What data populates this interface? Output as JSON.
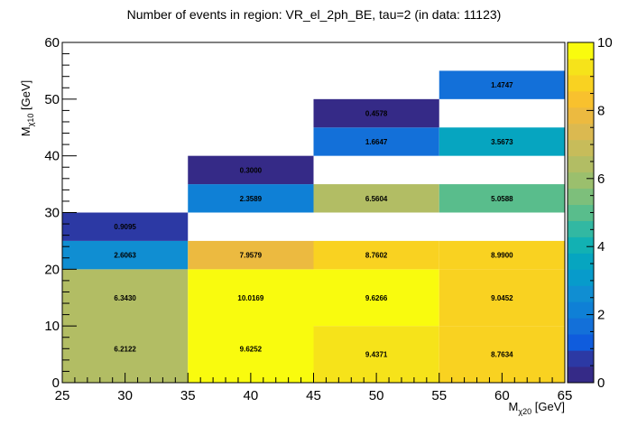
{
  "chart_data": {
    "type": "heatmap",
    "title": "Number of events in region: VR_el_2ph_BE, tau=2 (in data: 11123)",
    "xlabel": {
      "main": "M",
      "sub": "χ20",
      "unit": " [GeV]"
    },
    "ylabel": {
      "main": "M",
      "sub": "χ10",
      "unit": " [GeV]"
    },
    "xlim": [
      25,
      65
    ],
    "ylim": [
      0,
      60
    ],
    "zlim": [
      0,
      10
    ],
    "x_ticks": [
      "25",
      "30",
      "35",
      "40",
      "45",
      "50",
      "55",
      "60",
      "65"
    ],
    "y_ticks": [
      "0",
      "10",
      "20",
      "30",
      "40",
      "50",
      "60"
    ],
    "z_ticks": [
      "0",
      "2",
      "4",
      "6",
      "8",
      "10"
    ],
    "cells": [
      {
        "x": [
          25,
          35
        ],
        "y": [
          0,
          20
        ],
        "value": 6.2122,
        "label": "6.2122",
        "label_y": 6
      },
      {
        "x": [
          25,
          35
        ],
        "y": [
          0,
          20
        ],
        "value": 6.343,
        "label": "6.3430",
        "label_y": 15,
        "label_only": true
      },
      {
        "x": [
          25,
          35
        ],
        "y": [
          20,
          25
        ],
        "value": 2.6063,
        "label": "2.6063"
      },
      {
        "x": [
          25,
          35
        ],
        "y": [
          25,
          30
        ],
        "value": 0.9095,
        "label": "0.9095"
      },
      {
        "x": [
          35,
          45
        ],
        "y": [
          0,
          20
        ],
        "value": 9.6252,
        "label": "9.6252",
        "label_y": 6
      },
      {
        "x": [
          35,
          45
        ],
        "y": [
          0,
          20
        ],
        "value": 10.0169,
        "label": "10.0169",
        "label_y": 15,
        "label_only": true
      },
      {
        "x": [
          35,
          45
        ],
        "y": [
          20,
          25
        ],
        "value": 7.9579,
        "label": "7.9579"
      },
      {
        "x": [
          35,
          45
        ],
        "y": [
          30,
          35
        ],
        "value": 2.3589,
        "label": "2.3589"
      },
      {
        "x": [
          35,
          45
        ],
        "y": [
          35,
          40
        ],
        "value": 0.3,
        "label": "0.3000"
      },
      {
        "x": [
          45,
          55
        ],
        "y": [
          0,
          10
        ],
        "value": 9.4371,
        "label": "9.4371"
      },
      {
        "x": [
          45,
          55
        ],
        "y": [
          10,
          20
        ],
        "value": 9.6266,
        "label": "9.6266"
      },
      {
        "x": [
          45,
          55
        ],
        "y": [
          20,
          25
        ],
        "value": 8.7602,
        "label": "8.7602"
      },
      {
        "x": [
          45,
          55
        ],
        "y": [
          30,
          35
        ],
        "value": 6.5604,
        "label": "6.5604"
      },
      {
        "x": [
          45,
          55
        ],
        "y": [
          40,
          45
        ],
        "value": 1.6647,
        "label": "1.6647"
      },
      {
        "x": [
          45,
          55
        ],
        "y": [
          45,
          50
        ],
        "value": 0.4578,
        "label": "0.4578"
      },
      {
        "x": [
          55,
          65
        ],
        "y": [
          0,
          10
        ],
        "value": 8.7634,
        "label": "8.7634"
      },
      {
        "x": [
          55,
          65
        ],
        "y": [
          10,
          20
        ],
        "value": 9.0452,
        "label": "9.0452"
      },
      {
        "x": [
          55,
          65
        ],
        "y": [
          20,
          25
        ],
        "value": 8.99,
        "label": "8.9900"
      },
      {
        "x": [
          55,
          65
        ],
        "y": [
          30,
          35
        ],
        "value": 5.0588,
        "label": "5.0588"
      },
      {
        "x": [
          55,
          65
        ],
        "y": [
          40,
          45
        ],
        "value": 3.5673,
        "label": "3.5673"
      },
      {
        "x": [
          55,
          65
        ],
        "y": [
          50,
          55
        ],
        "value": 1.4747,
        "label": "1.4747"
      }
    ],
    "palette": [
      "#352a87",
      "#2c39a4",
      "#0f5cdd",
      "#1370d9",
      "#0f80d6",
      "#108ed2",
      "#079bcb",
      "#06a5c0",
      "#12b1b3",
      "#32b8a2",
      "#59bd8c",
      "#7dbf7b",
      "#9bbf6d",
      "#b2bd64",
      "#c7bc5a",
      "#dbb950",
      "#ecba40",
      "#f8c12e",
      "#f9d221",
      "#f6e31a",
      "#f9fb0e"
    ],
    "grid": false,
    "legend": "colorbar-right"
  }
}
